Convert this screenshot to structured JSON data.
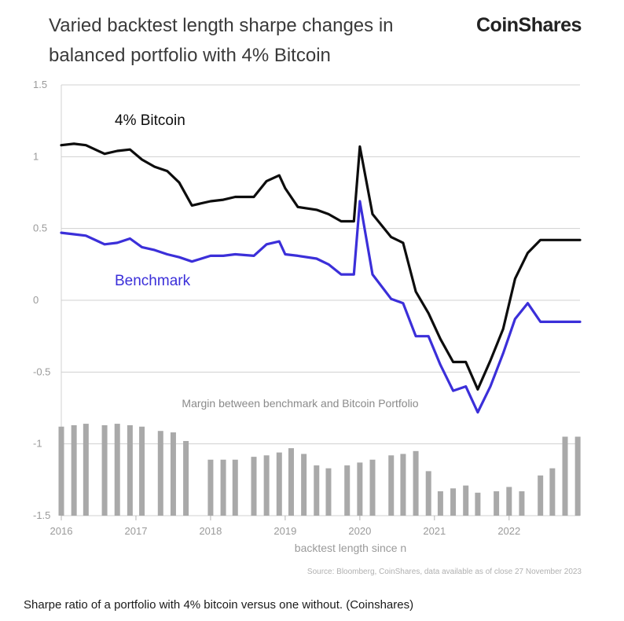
{
  "title": "Varied backtest length sharpe changes in balanced portfolio with 4% Bitcoin",
  "logo": "CoinShares",
  "caption": "Sharpe ratio of a portfolio with 4% bitcoin versus one without. (Coinshares)",
  "colors": {
    "bitcoin": "#0d0d0d",
    "benchmark": "#3b2fd9",
    "margin": "#a9a9a9",
    "grid": "#d0d0d0",
    "axis_text": "#9a9a9a"
  },
  "chart_data": {
    "type": "line",
    "title": "Varied backtest length sharpe changes in balanced portfolio with 4% Bitcoin",
    "xlabel": "backtest length since n",
    "ylabel": "",
    "xlim": [
      2016.0,
      2022.95
    ],
    "ylim": [
      -1.5,
      1.5
    ],
    "yticks": [
      "1.5",
      "1",
      "0.5",
      "0",
      "-0.5",
      "-1",
      "-1.5"
    ],
    "xticks": [
      "2016",
      "2017",
      "2018",
      "2019",
      "2020",
      "2021",
      "2022"
    ],
    "grid": true,
    "source": "Source: Bloomberg, CoinShares, data available as of close 27 November 2023",
    "annotation": "Margin between benchmark and Bitcoin Portfolio",
    "series": [
      {
        "name": "4% Bitcoin",
        "type": "line",
        "x": [
          2016.0,
          2016.17,
          2016.33,
          2016.58,
          2016.75,
          2016.92,
          2017.08,
          2017.25,
          2017.42,
          2017.58,
          2017.75,
          2018.0,
          2018.17,
          2018.33,
          2018.58,
          2018.75,
          2018.92,
          2019.0,
          2019.17,
          2019.42,
          2019.58,
          2019.75,
          2019.92,
          2020.0,
          2020.17,
          2020.42,
          2020.58,
          2020.75,
          2020.92,
          2021.08,
          2021.25,
          2021.42,
          2021.58,
          2021.75,
          2021.92,
          2022.08,
          2022.25,
          2022.42,
          2022.58,
          2022.75,
          2022.95
        ],
        "y": [
          1.08,
          1.09,
          1.08,
          1.02,
          1.04,
          1.05,
          0.98,
          0.93,
          0.9,
          0.82,
          0.66,
          0.69,
          0.7,
          0.72,
          0.72,
          0.83,
          0.87,
          0.78,
          0.65,
          0.63,
          0.6,
          0.55,
          0.55,
          1.07,
          0.6,
          0.44,
          0.4,
          0.06,
          -0.09,
          -0.27,
          -0.43,
          -0.43,
          -0.62,
          -0.42,
          -0.2,
          0.15,
          0.33,
          0.42,
          0.42,
          0.42,
          0.42
        ]
      },
      {
        "name": "Benchmark",
        "type": "line",
        "x": [
          2016.0,
          2016.17,
          2016.33,
          2016.58,
          2016.75,
          2016.92,
          2017.08,
          2017.25,
          2017.42,
          2017.58,
          2017.75,
          2018.0,
          2018.17,
          2018.33,
          2018.58,
          2018.75,
          2018.92,
          2019.0,
          2019.17,
          2019.42,
          2019.58,
          2019.75,
          2019.92,
          2020.0,
          2020.17,
          2020.42,
          2020.58,
          2020.75,
          2020.92,
          2021.08,
          2021.25,
          2021.42,
          2021.58,
          2021.75,
          2021.92,
          2022.08,
          2022.25,
          2022.42,
          2022.58,
          2022.75,
          2022.95
        ],
        "y": [
          0.47,
          0.46,
          0.45,
          0.39,
          0.4,
          0.43,
          0.37,
          0.35,
          0.32,
          0.3,
          0.27,
          0.31,
          0.31,
          0.32,
          0.31,
          0.39,
          0.41,
          0.32,
          0.31,
          0.29,
          0.25,
          0.18,
          0.18,
          0.69,
          0.18,
          0.01,
          -0.02,
          -0.25,
          -0.25,
          -0.45,
          -0.63,
          -0.6,
          -0.78,
          -0.6,
          -0.37,
          -0.13,
          -0.02,
          -0.15,
          -0.15,
          -0.15,
          -0.15
        ]
      },
      {
        "name": "Margin between benchmark and Bitcoin Portfolio",
        "type": "bar",
        "x": [
          2016.0,
          2016.17,
          2016.33,
          2016.58,
          2016.75,
          2016.92,
          2017.08,
          2017.33,
          2017.5,
          2017.67,
          2018.0,
          2018.17,
          2018.33,
          2018.58,
          2018.75,
          2018.92,
          2019.08,
          2019.25,
          2019.42,
          2019.58,
          2019.83,
          2020.0,
          2020.17,
          2020.42,
          2020.58,
          2020.75,
          2020.92,
          2021.08,
          2021.25,
          2021.42,
          2021.58,
          2021.83,
          2022.0,
          2022.17,
          2022.42,
          2022.58,
          2022.75,
          2022.92
        ],
        "y": [
          -0.88,
          -0.87,
          -0.86,
          -0.87,
          -0.86,
          -0.87,
          -0.88,
          -0.91,
          -0.92,
          -0.98,
          -1.11,
          -1.11,
          -1.11,
          -1.09,
          -1.08,
          -1.06,
          -1.03,
          -1.07,
          -1.15,
          -1.17,
          -1.15,
          -1.13,
          -1.11,
          -1.08,
          -1.07,
          -1.05,
          -1.19,
          -1.33,
          -1.31,
          -1.29,
          -1.34,
          -1.33,
          -1.3,
          -1.33,
          -1.22,
          -1.17,
          -0.95,
          -0.95
        ]
      }
    ]
  }
}
